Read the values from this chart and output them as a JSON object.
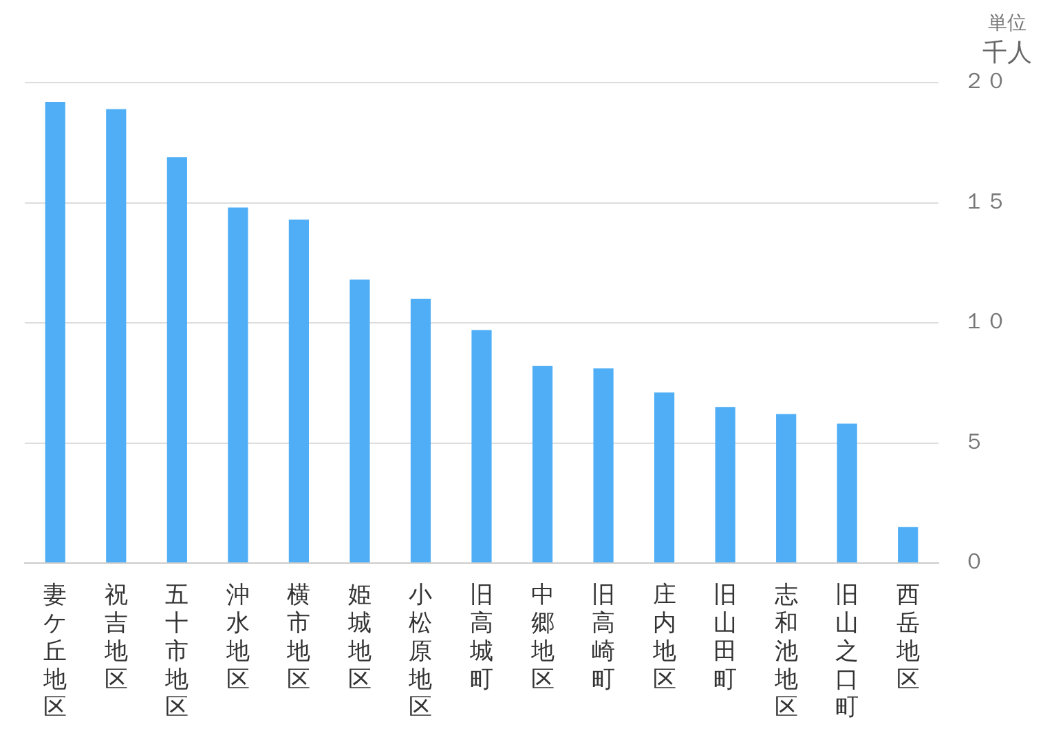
{
  "chart_data": {
    "type": "bar",
    "ylabel": "千人",
    "annotations": [
      "単位"
    ],
    "categories": [
      "妻ケ丘地区",
      "祝吉地区",
      "五十市地区",
      "沖水地区",
      "横市地区",
      "姫城地区",
      "小松原地区",
      "旧高城町",
      "中郷地区",
      "旧高崎町",
      "庄内地区",
      "旧山田町",
      "志和池地区",
      "旧山之口町",
      "西岳地区"
    ],
    "values": [
      19.2,
      18.9,
      16.9,
      14.8,
      14.3,
      11.8,
      11.0,
      9.7,
      8.2,
      8.1,
      7.1,
      6.5,
      6.2,
      5.8,
      1.5
    ],
    "color": "#4faef5",
    "ylim": [
      0,
      20
    ],
    "yticks": [
      {
        "value": 0,
        "label": "０"
      },
      {
        "value": 5,
        "label": "５"
      },
      {
        "value": 10,
        "label": "１０"
      },
      {
        "value": 15,
        "label": "１５"
      },
      {
        "value": 20,
        "label": "２０"
      }
    ],
    "grid": "y"
  }
}
